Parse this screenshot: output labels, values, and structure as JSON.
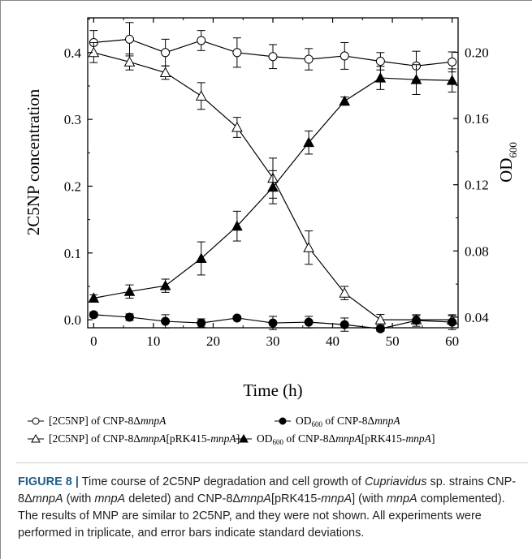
{
  "chart_data": {
    "type": "line",
    "xlabel": "Time (h)",
    "ylabel_left": "2C5NP concentration",
    "ylabel_right": "OD",
    "ylabel_right_sub": "600",
    "xlim": [
      -1,
      61
    ],
    "ylim_left": [
      -0.012,
      0.452
    ],
    "ylim_right": [
      0.0336,
      0.2208
    ],
    "xticks": [
      0,
      10,
      20,
      30,
      40,
      50,
      60
    ],
    "yticks_left": [
      0.0,
      0.1,
      0.2,
      0.3,
      0.4
    ],
    "yticks_right": [
      0.04,
      0.08,
      0.12,
      0.16,
      0.2
    ],
    "ytick_labels_left": [
      "0.0",
      "0.1",
      "0.2",
      "0.3",
      "0.4"
    ],
    "ytick_labels_right": [
      "0.04",
      "0.08",
      "0.12",
      "0.16",
      "0.20"
    ],
    "series": [
      {
        "name": "[2C5NP] of CNP-8ΔmnpA",
        "axis": "left",
        "marker": "circle-open",
        "x": [
          0,
          6,
          12,
          18,
          24,
          30,
          36,
          42,
          48,
          54,
          60
        ],
        "y": [
          0.415,
          0.42,
          0.4,
          0.418,
          0.4,
          0.394,
          0.39,
          0.395,
          0.387,
          0.38,
          0.386
        ],
        "err": [
          0.018,
          0.025,
          0.02,
          0.015,
          0.022,
          0.018,
          0.016,
          0.02,
          0.013,
          0.022,
          0.015
        ]
      },
      {
        "name": "[2C5NP] of CNP-8ΔmnpA[pRK415-mnpA]",
        "axis": "left",
        "marker": "triangle-open",
        "x": [
          0,
          6,
          12,
          18,
          24,
          30,
          36,
          42,
          48,
          54,
          60
        ],
        "y": [
          0.4,
          0.386,
          0.37,
          0.335,
          0.288,
          0.212,
          0.108,
          0.04,
          0.0,
          0.0,
          0.0
        ],
        "err": [
          0.015,
          0.012,
          0.01,
          0.02,
          0.015,
          0.03,
          0.025,
          0.01,
          0.008,
          0.006,
          0.006
        ]
      },
      {
        "name": "OD600 of CNP-8ΔmnpA",
        "axis": "right",
        "marker": "circle-filled",
        "x": [
          0,
          6,
          12,
          18,
          24,
          30,
          36,
          42,
          48,
          54,
          60
        ],
        "y": [
          0.0415,
          0.04,
          0.0375,
          0.0365,
          0.0395,
          0.0365,
          0.037,
          0.0355,
          0.033,
          0.038,
          0.037
        ],
        "err": [
          0.0015,
          0.002,
          0.004,
          0.0025,
          0.001,
          0.004,
          0.0035,
          0.004,
          0.0015,
          0.0035,
          0.0045
        ]
      },
      {
        "name": "OD600 of CNP-8ΔmnpA[pRK415-mnpA]",
        "axis": "right",
        "marker": "triangle-filled",
        "x": [
          0,
          6,
          12,
          18,
          24,
          30,
          36,
          42,
          48,
          54,
          60
        ],
        "y": [
          0.0515,
          0.0555,
          0.059,
          0.0755,
          0.095,
          0.1185,
          0.1455,
          0.1705,
          0.1845,
          0.1835,
          0.183
        ],
        "err": [
          0.002,
          0.004,
          0.004,
          0.01,
          0.009,
          0.01,
          0.007,
          0.0025,
          0.007,
          0.009,
          0.007
        ]
      }
    ],
    "legend_placement": "bottom",
    "grid": false
  },
  "legend": {
    "item1_prefix": "[2C5NP] of CNP-8Δ",
    "item1_italic": "mnpA",
    "item2_prefix": "OD",
    "item2_sub": "600",
    "item2_mid": " of CNP-8Δ",
    "item2_italic": "mnpA",
    "item3_prefix": "[2C5NP] of CNP-8Δ",
    "item3_italic": "mnpA",
    "item3_mid": "[pRK415-",
    "item3_italic2": "mnpA",
    "item3_suffix": "]",
    "item4_prefix": "OD",
    "item4_sub": "600",
    "item4_mid": " of CNP-8Δ",
    "item4_italic": "mnpA",
    "item4_mid2": "[pRK415-",
    "item4_italic2": "mnpA",
    "item4_suffix": "]"
  },
  "caption": {
    "label": "FIGURE 8 |",
    "t1": " Time course of 2C5NP degradation and cell growth of ",
    "t2": "Cupriavidus",
    "t3": " sp. strains CNP-8Δ",
    "t4": "mnpA",
    "t5": " (with ",
    "t6": "mnpA",
    "t7": " deleted) and CNP-8Δ",
    "t8": "mnpA",
    "t9": "[pRK415-",
    "t10": "mnpA",
    "t11": "] (with ",
    "t12": "mnpA",
    "t13": " complemented). The results of MNP are similar to 2C5NP, and they were not shown. All experiments were performed in triplicate, and error bars indicate standard deviations."
  }
}
